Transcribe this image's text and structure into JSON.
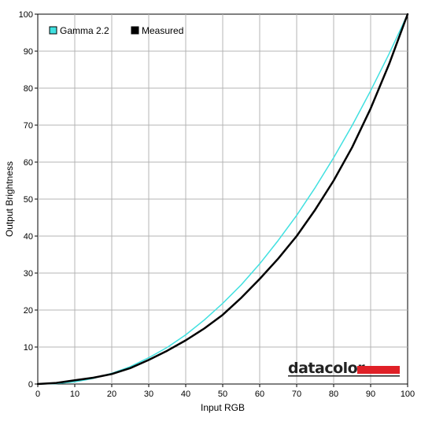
{
  "chart_data": {
    "type": "line",
    "title": "",
    "xlabel": "Input RGB",
    "ylabel": "Output Brightness",
    "xlim": [
      0,
      100
    ],
    "ylim": [
      0,
      100
    ],
    "xticks": [
      "0",
      "10",
      "20",
      "30",
      "40",
      "50",
      "60",
      "70",
      "80",
      "90",
      "100"
    ],
    "yticks": [
      "0",
      "10",
      "20",
      "30",
      "40",
      "50",
      "60",
      "70",
      "80",
      "90",
      "100"
    ],
    "grid": true,
    "legend_position": "top-left",
    "series": [
      {
        "name": "Gamma 2.2",
        "color": "#40e0e0",
        "x": [
          0,
          5,
          10,
          15,
          20,
          25,
          30,
          35,
          40,
          45,
          50,
          55,
          60,
          65,
          70,
          75,
          80,
          85,
          90,
          95,
          100
        ],
        "y": [
          0,
          0.1,
          0.6,
          1.5,
          2.9,
          4.7,
          7.1,
          9.9,
          13.3,
          17.3,
          21.8,
          26.8,
          32.5,
          38.8,
          45.6,
          53.1,
          61.2,
          69.9,
          79.3,
          89.3,
          100
        ]
      },
      {
        "name": "Measured",
        "color": "#000000",
        "x": [
          0,
          5,
          10,
          15,
          20,
          25,
          30,
          35,
          40,
          45,
          50,
          55,
          60,
          65,
          70,
          75,
          80,
          85,
          90,
          95,
          100
        ],
        "y": [
          0,
          0.3,
          1.0,
          1.7,
          2.7,
          4.3,
          6.5,
          9.0,
          11.8,
          15.0,
          18.7,
          23.3,
          28.4,
          33.9,
          40.0,
          47.1,
          55.0,
          64.0,
          74.5,
          86.5,
          100
        ]
      }
    ]
  },
  "logo": {
    "text": "datacolor",
    "bar_color": "#e02027"
  }
}
